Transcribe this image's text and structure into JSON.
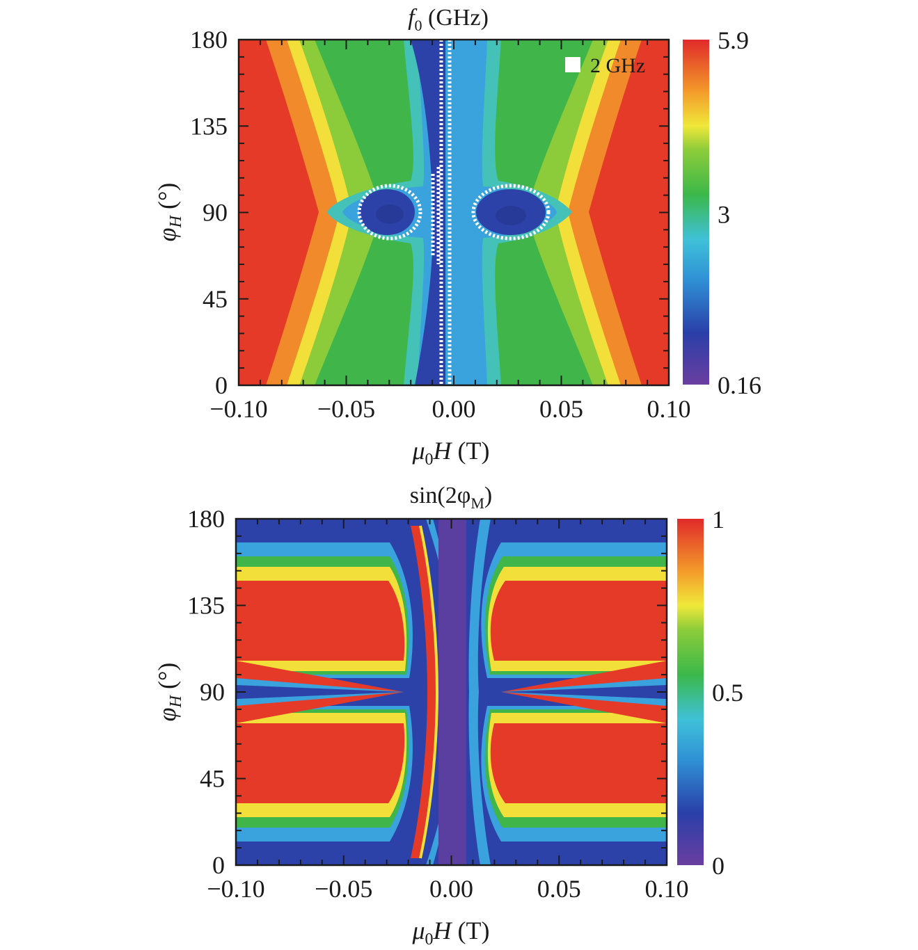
{
  "chart_data": [
    {
      "type": "heatmap",
      "title": "f0 (GHz)",
      "title_parts": {
        "main": "f",
        "sub": "0",
        "rest": " (GHz)"
      },
      "xlabel": "μ0H (T)",
      "xlabel_parts": {
        "main": "μ",
        "sub": "0",
        "rest": "H (T)"
      },
      "ylabel": "φH (°)",
      "ylabel_parts": {
        "main": "φ",
        "sub": "H",
        "rest": " (°)"
      },
      "xlim": [
        -0.1,
        0.1
      ],
      "ylim": [
        0,
        180
      ],
      "x_ticks": [
        -0.1,
        -0.05,
        0.0,
        0.05,
        0.1
      ],
      "x_tick_labels": [
        "−0.10",
        "−0.05",
        "0.00",
        "0.05",
        "0.10"
      ],
      "y_ticks": [
        0,
        45,
        90,
        135,
        180
      ],
      "y_tick_labels": [
        "0",
        "45",
        "90",
        "135",
        "180"
      ],
      "colorbar": {
        "min": 0.16,
        "max": 5.9,
        "ticks": [
          5.9,
          3,
          0.16
        ],
        "tick_labels": [
          "5.9",
          "3",
          "0.16"
        ],
        "colormap": "rainbow"
      },
      "legend": {
        "label": "2 GHz",
        "marker_color": "#ffffff",
        "placement": "top-right"
      },
      "contour_value": 2,
      "x_grid": [
        -0.1,
        -0.08,
        -0.06,
        -0.045,
        -0.03,
        -0.02,
        -0.012,
        -0.006,
        0.0,
        0.006,
        0.012,
        0.02,
        0.03,
        0.045,
        0.06,
        0.08,
        0.1
      ],
      "y_grid": [
        0,
        45,
        90,
        135,
        180
      ],
      "z": [
        [
          5.7,
          5.0,
          4.2,
          3.5,
          3.4,
          3.3,
          2.6,
          1.1,
          2.6,
          2.6,
          3.0,
          3.1,
          3.2,
          3.5,
          4.2,
          5.0,
          5.7
        ],
        [
          5.6,
          4.8,
          3.9,
          3.4,
          3.3,
          3.1,
          2.5,
          1.1,
          2.6,
          2.6,
          2.9,
          3.0,
          3.1,
          3.4,
          3.9,
          4.8,
          5.6
        ],
        [
          5.2,
          4.3,
          3.6,
          3.1,
          2.2,
          1.8,
          2.4,
          1.1,
          2.6,
          2.6,
          2.3,
          1.8,
          2.1,
          3.1,
          3.6,
          4.3,
          5.2
        ],
        [
          5.6,
          4.8,
          3.9,
          3.4,
          3.3,
          3.1,
          2.5,
          1.1,
          2.6,
          2.6,
          2.9,
          3.0,
          3.1,
          3.4,
          3.9,
          4.8,
          5.6
        ],
        [
          5.7,
          5.0,
          4.2,
          3.5,
          3.4,
          3.3,
          2.6,
          1.1,
          2.6,
          2.6,
          3.0,
          3.1,
          3.2,
          3.5,
          4.2,
          5.0,
          5.7
        ]
      ]
    },
    {
      "type": "heatmap",
      "title": "sin(2φM)",
      "title_parts": {
        "main": "sin(2φ",
        "sub": "M",
        "rest": ")"
      },
      "xlabel": "μ0H (T)",
      "xlabel_parts": {
        "main": "μ",
        "sub": "0",
        "rest": "H (T)"
      },
      "ylabel": "φH (°)",
      "ylabel_parts": {
        "main": "φ",
        "sub": "H",
        "rest": " (°)"
      },
      "xlim": [
        -0.1,
        0.1
      ],
      "ylim": [
        0,
        180
      ],
      "x_ticks": [
        -0.1,
        -0.05,
        0.0,
        0.05,
        0.1
      ],
      "x_tick_labels": [
        "−0.10",
        "−0.05",
        "0.00",
        "0.05",
        "0.10"
      ],
      "y_ticks": [
        0,
        45,
        90,
        135,
        180
      ],
      "y_tick_labels": [
        "0",
        "45",
        "90",
        "135",
        "180"
      ],
      "colorbar": {
        "min": 0,
        "max": 1,
        "ticks": [
          1,
          0.5,
          0
        ],
        "tick_labels": [
          "1",
          "0.5",
          "0"
        ],
        "colormap": "rainbow"
      },
      "x_grid": [
        -0.1,
        -0.05,
        -0.02,
        -0.012,
        0.0,
        0.012,
        0.02,
        0.05,
        0.1
      ],
      "y_grid": [
        0,
        22.5,
        45,
        67.5,
        90,
        112.5,
        135,
        157.5,
        180
      ],
      "z": [
        [
          0.2,
          0.2,
          0.2,
          0.6,
          0.05,
          0.2,
          0.2,
          0.2,
          0.2
        ],
        [
          0.6,
          0.6,
          0.55,
          0.95,
          0.05,
          0.4,
          0.6,
          0.6,
          0.6
        ],
        [
          1.0,
          1.0,
          0.95,
          0.95,
          0.1,
          0.75,
          0.98,
          1.0,
          1.0
        ],
        [
          0.95,
          0.95,
          1.0,
          0.95,
          0.2,
          0.9,
          1.0,
          0.95,
          0.95
        ],
        [
          0.15,
          0.15,
          0.95,
          0.95,
          0.4,
          0.95,
          0.9,
          0.15,
          0.15
        ],
        [
          0.95,
          0.95,
          1.0,
          0.95,
          0.2,
          0.9,
          1.0,
          0.95,
          0.95
        ],
        [
          1.0,
          1.0,
          0.95,
          0.95,
          0.1,
          0.75,
          0.98,
          1.0,
          1.0
        ],
        [
          0.6,
          0.6,
          0.55,
          0.95,
          0.05,
          0.4,
          0.6,
          0.6,
          0.6
        ],
        [
          0.2,
          0.2,
          0.2,
          0.6,
          0.05,
          0.2,
          0.2,
          0.2,
          0.2
        ]
      ]
    }
  ]
}
